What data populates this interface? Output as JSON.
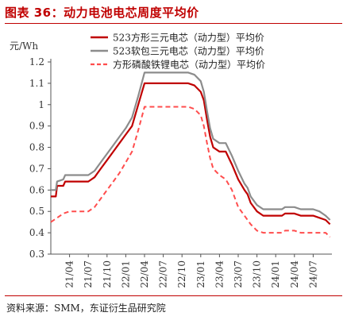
{
  "header": {
    "title": "图表 36：动力电池电芯周度平均价"
  },
  "footer": {
    "source": "资料来源：SMM，东证衍生品研究院"
  },
  "chart_data": {
    "type": "line",
    "ylabel": "元/Wh",
    "ylim": [
      0.3,
      1.2
    ],
    "yticks": [
      0.3,
      0.4,
      0.5,
      0.6,
      0.7,
      0.8,
      0.9,
      1,
      1.1,
      1.2
    ],
    "xticks": [
      "21/04",
      "21/07",
      "21/10",
      "22/01",
      "22/04",
      "22/07",
      "22/10",
      "23/01",
      "23/04",
      "23/07",
      "23/10",
      "24/01",
      "24/04",
      "24/07"
    ],
    "xtick_months": [
      3,
      6,
      9,
      12,
      15,
      18,
      21,
      24,
      27,
      30,
      33,
      36,
      39,
      42
    ],
    "xrange_months": [
      0,
      45
    ],
    "legend_position": "top",
    "grid": false,
    "series": [
      {
        "name": "523方形三元电芯（动力型）平均价",
        "color": "#c00000",
        "style": "solid",
        "width": 2.2,
        "points": [
          [
            0,
            0.57
          ],
          [
            0.8,
            0.57
          ],
          [
            1,
            0.62
          ],
          [
            2,
            0.62
          ],
          [
            2.3,
            0.64
          ],
          [
            3,
            0.64
          ],
          [
            6,
            0.64
          ],
          [
            7,
            0.66
          ],
          [
            8,
            0.7
          ],
          [
            9,
            0.74
          ],
          [
            10,
            0.78
          ],
          [
            11,
            0.82
          ],
          [
            12,
            0.86
          ],
          [
            13,
            0.9
          ],
          [
            14,
            1.0
          ],
          [
            15,
            1.1
          ],
          [
            17,
            1.1
          ],
          [
            20,
            1.1
          ],
          [
            22,
            1.1
          ],
          [
            23,
            1.09
          ],
          [
            24,
            1.06
          ],
          [
            24.5,
            1.02
          ],
          [
            25,
            0.93
          ],
          [
            25.5,
            0.85
          ],
          [
            26,
            0.8
          ],
          [
            27,
            0.78
          ],
          [
            28,
            0.78
          ],
          [
            29,
            0.72
          ],
          [
            30,
            0.65
          ],
          [
            31,
            0.6
          ],
          [
            31.5,
            0.58
          ],
          [
            32,
            0.54
          ],
          [
            33,
            0.5
          ],
          [
            34,
            0.48
          ],
          [
            36,
            0.48
          ],
          [
            37,
            0.48
          ],
          [
            37.5,
            0.49
          ],
          [
            38,
            0.49
          ],
          [
            39,
            0.49
          ],
          [
            40,
            0.48
          ],
          [
            41,
            0.48
          ],
          [
            42,
            0.48
          ],
          [
            43,
            0.47
          ],
          [
            44,
            0.46
          ],
          [
            44.7,
            0.44
          ]
        ]
      },
      {
        "name": "523软包三元电芯（动力型）平均价",
        "color": "#8c8c8c",
        "style": "solid",
        "width": 2.2,
        "points": [
          [
            0,
            0.6
          ],
          [
            0.8,
            0.6
          ],
          [
            1,
            0.64
          ],
          [
            2,
            0.65
          ],
          [
            2.3,
            0.67
          ],
          [
            3,
            0.67
          ],
          [
            6,
            0.67
          ],
          [
            7,
            0.69
          ],
          [
            8,
            0.73
          ],
          [
            9,
            0.77
          ],
          [
            10,
            0.81
          ],
          [
            11,
            0.85
          ],
          [
            12,
            0.89
          ],
          [
            13,
            0.94
          ],
          [
            14,
            1.04
          ],
          [
            15,
            1.15
          ],
          [
            17,
            1.15
          ],
          [
            20,
            1.15
          ],
          [
            22,
            1.15
          ],
          [
            23,
            1.14
          ],
          [
            24,
            1.11
          ],
          [
            24.5,
            1.06
          ],
          [
            25,
            0.97
          ],
          [
            25.5,
            0.89
          ],
          [
            26,
            0.84
          ],
          [
            27,
            0.82
          ],
          [
            28,
            0.82
          ],
          [
            29,
            0.76
          ],
          [
            30,
            0.69
          ],
          [
            31,
            0.63
          ],
          [
            31.5,
            0.61
          ],
          [
            32,
            0.57
          ],
          [
            33,
            0.53
          ],
          [
            34,
            0.51
          ],
          [
            36,
            0.51
          ],
          [
            37,
            0.51
          ],
          [
            37.5,
            0.52
          ],
          [
            38,
            0.52
          ],
          [
            39,
            0.52
          ],
          [
            40,
            0.51
          ],
          [
            41,
            0.51
          ],
          [
            42,
            0.51
          ],
          [
            43,
            0.5
          ],
          [
            44,
            0.48
          ],
          [
            44.7,
            0.46
          ]
        ]
      },
      {
        "name": "方形磷酸铁锂电芯（动力型）平均价",
        "color": "#ff4d4d",
        "style": "dashed",
        "width": 2.0,
        "points": [
          [
            0,
            0.45
          ],
          [
            1,
            0.47
          ],
          [
            2,
            0.49
          ],
          [
            3,
            0.5
          ],
          [
            6,
            0.5
          ],
          [
            7,
            0.52
          ],
          [
            8,
            0.56
          ],
          [
            9,
            0.6
          ],
          [
            10,
            0.64
          ],
          [
            11,
            0.68
          ],
          [
            12,
            0.73
          ],
          [
            13,
            0.78
          ],
          [
            14,
            0.88
          ],
          [
            15,
            0.99
          ],
          [
            17,
            0.99
          ],
          [
            20,
            0.99
          ],
          [
            22,
            0.99
          ],
          [
            23,
            0.98
          ],
          [
            24,
            0.95
          ],
          [
            24.5,
            0.9
          ],
          [
            25,
            0.82
          ],
          [
            25.5,
            0.75
          ],
          [
            26,
            0.7
          ],
          [
            27,
            0.67
          ],
          [
            28,
            0.65
          ],
          [
            29,
            0.6
          ],
          [
            30,
            0.52
          ],
          [
            31,
            0.48
          ],
          [
            32,
            0.44
          ],
          [
            33,
            0.41
          ],
          [
            34,
            0.4
          ],
          [
            35,
            0.4
          ],
          [
            36,
            0.4
          ],
          [
            37,
            0.4
          ],
          [
            37.5,
            0.41
          ],
          [
            38,
            0.41
          ],
          [
            39,
            0.41
          ],
          [
            40,
            0.4
          ],
          [
            41,
            0.4
          ],
          [
            42,
            0.4
          ],
          [
            43,
            0.4
          ],
          [
            44,
            0.4
          ],
          [
            44.7,
            0.38
          ]
        ]
      }
    ]
  }
}
